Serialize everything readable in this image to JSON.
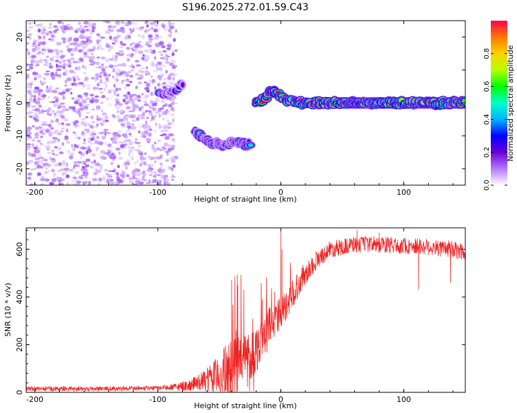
{
  "title": "S196.2025.272.01.59.C43",
  "chart_data": [
    {
      "type": "heatmap",
      "xlabel": "Height of straight line (km)",
      "ylabel": "Frequency (Hz)",
      "xlim": [
        -207,
        150
      ],
      "ylim": [
        -25,
        25
      ],
      "xticks": [
        -200,
        -100,
        0,
        100
      ],
      "yticks": [
        -20,
        -10,
        0,
        10,
        20
      ],
      "colorbar": {
        "label": "Normalized spectral amplitude",
        "range": [
          0,
          1
        ],
        "ticks": [
          0.0,
          0.2,
          0.4,
          0.6,
          0.8
        ],
        "colormap": [
          "#ffffff",
          "#b478ff",
          "#6a00d8",
          "#0000ff",
          "#00b4ff",
          "#00ffc8",
          "#00ff00",
          "#b4ff00",
          "#ffd200",
          "#ff7800",
          "#ff0050"
        ]
      },
      "features": [
        {
          "name": "noise",
          "x_range": [
            -207,
            -85
          ],
          "f_range": [
            -25,
            25
          ],
          "amplitude": 0.12
        },
        {
          "name": "tone",
          "points": [
            [
              -98,
              3
            ],
            [
              -90,
              2.5
            ],
            [
              -85,
              4
            ],
            [
              -80,
              6
            ]
          ],
          "amplitude": 0.4
        },
        {
          "name": "tone",
          "points": [
            [
              -70,
              -9
            ],
            [
              -60,
              -11
            ],
            [
              -50,
              -13
            ],
            [
              -40,
              -12
            ],
            [
              -30,
              -12.5
            ],
            [
              -25,
              -13
            ]
          ],
          "amplitude": 0.5
        },
        {
          "name": "tone",
          "points": [
            [
              -20,
              0
            ],
            [
              -15,
              1
            ],
            [
              -10,
              3
            ],
            [
              -5,
              3.5
            ],
            [
              0,
              2
            ],
            [
              5,
              1
            ],
            [
              10,
              0.5
            ],
            [
              20,
              0
            ],
            [
              150,
              0
            ]
          ],
          "amplitude": 1.0
        }
      ]
    },
    {
      "type": "line",
      "xlabel": "Height of straight line (km)",
      "ylabel": "SNR (10 * v/v)",
      "xlim": [
        -207,
        150
      ],
      "ylim": [
        0,
        690
      ],
      "xticks": [
        -200,
        -100,
        0,
        100
      ],
      "yticks": [
        0,
        200,
        400,
        600
      ],
      "color": "#ee2222",
      "envelope": {
        "x": [
          -207,
          -150,
          -100,
          -90,
          -80,
          -70,
          -60,
          -50,
          -40,
          -30,
          -20,
          -10,
          0,
          10,
          20,
          30,
          40,
          50,
          60,
          80,
          100,
          120,
          150
        ],
        "mean": [
          15,
          15,
          18,
          20,
          25,
          35,
          50,
          70,
          90,
          140,
          180,
          280,
          330,
          420,
          500,
          560,
          600,
          610,
          620,
          620,
          615,
          610,
          590
        ],
        "spread": [
          10,
          10,
          10,
          12,
          20,
          30,
          50,
          90,
          150,
          120,
          100,
          80,
          70,
          60,
          50,
          40,
          35,
          35,
          35,
          35,
          35,
          35,
          40
        ]
      },
      "spikes": [
        [
          -40,
          470
        ],
        [
          -35,
          450
        ],
        [
          -30,
          430
        ],
        [
          -15,
          390
        ],
        [
          -5,
          420
        ],
        [
          0,
          680
        ],
        [
          1,
          600
        ],
        [
          62,
          680
        ],
        [
          80,
          670
        ],
        [
          95,
          640
        ],
        [
          112,
          430
        ],
        [
          138,
          460
        ]
      ]
    }
  ]
}
